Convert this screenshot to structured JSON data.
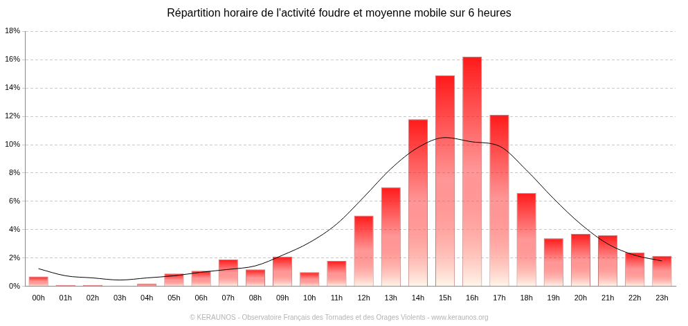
{
  "chart_data": {
    "type": "bar",
    "title": "Répartition horaire de l'activité foudre et moyenne mobile sur 6 heures",
    "footer": "© KERAUNOS - Observatoire Français des Tornades et des Orages Violents - www.keraunos.org",
    "categories": [
      "00h",
      "01h",
      "02h",
      "03h",
      "04h",
      "05h",
      "06h",
      "07h",
      "08h",
      "09h",
      "10h",
      "11h",
      "12h",
      "13h",
      "14h",
      "15h",
      "16h",
      "17h",
      "18h",
      "19h",
      "20h",
      "21h",
      "22h",
      "23h"
    ],
    "series": [
      {
        "type": "bar",
        "color": "#ff1a1a",
        "values": [
          0.7,
          0.1,
          0.1,
          0.05,
          0.2,
          0.9,
          1.1,
          1.9,
          1.2,
          2.1,
          1.0,
          1.8,
          5.0,
          7.0,
          11.8,
          14.9,
          16.2,
          12.1,
          6.6,
          3.4,
          3.7,
          3.6,
          2.4,
          2.15
        ]
      },
      {
        "type": "line",
        "color": "#000000",
        "marker": "none",
        "line_style": "solid",
        "values": [
          1.25,
          0.75,
          0.6,
          0.45,
          0.6,
          0.75,
          1.0,
          1.2,
          1.45,
          2.2,
          3.1,
          4.4,
          6.3,
          8.3,
          9.8,
          10.5,
          10.2,
          9.9,
          8.2,
          6.2,
          4.4,
          3.0,
          2.2,
          1.8
        ]
      }
    ],
    "ylim": [
      0,
      18
    ],
    "yticks": [
      {
        "value": 0,
        "label": "0%"
      },
      {
        "value": 2,
        "label": "2%"
      },
      {
        "value": 4,
        "label": "4%"
      },
      {
        "value": 6,
        "label": "6%"
      },
      {
        "value": 8,
        "label": "8%"
      },
      {
        "value": 10,
        "label": "10%"
      },
      {
        "value": 12,
        "label": "12%"
      },
      {
        "value": 14,
        "label": "14%"
      },
      {
        "value": 16,
        "label": "16%"
      },
      {
        "value": 18,
        "label": "18%"
      }
    ],
    "grid": true
  }
}
